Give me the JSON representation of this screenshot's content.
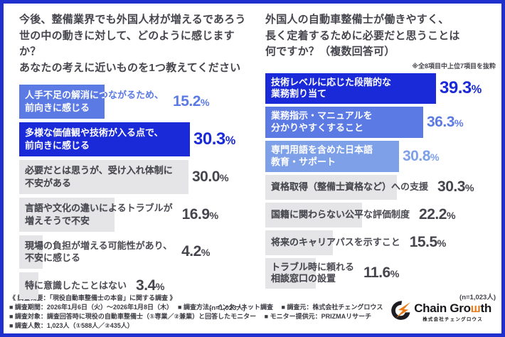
{
  "percent_sign": "%",
  "palette": {
    "frame": "#2030cf",
    "dark_blue": "#1b2ad8",
    "mid_blue": "#5c7ae3",
    "light_blue": "#7da0e8",
    "gray_bar": "#e5e5e7",
    "gray_text": "#4b4b53",
    "pct_gray": "#45454d",
    "title_text": "#45454d",
    "logo_orange": "#e87a18",
    "logo_black": "#17171b"
  },
  "charts": {
    "left": {
      "title": "今後、整備業界でも外国人材が増えるであろう\n世の中の動きに対して、どのように感じますか？\nあなたの考えに近いものを1つ教えてください",
      "n_label": "(n=1,023人)",
      "rows": [
        {
          "label": "人手不足の解消につながるため、\n前向きに感じる",
          "value": 15.2,
          "pct": "15.2",
          "style": "mid"
        },
        {
          "label": "多様な価値観や技術が入る点で、\n前向きに感じる",
          "value": 30.3,
          "pct": "30.3",
          "style": "dark"
        },
        {
          "label": "必要だとは思うが、受け入れ体制に\n不安がある",
          "value": 30.0,
          "pct": "30.0",
          "style": "gray"
        },
        {
          "label": "言語や文化の違いによるトラブルが\n増えそうで不安",
          "value": 16.9,
          "pct": "16.9",
          "style": "gray"
        },
        {
          "label": "現場の負担が増える可能性があり、\n不安に感じる",
          "value": 4.2,
          "pct": "4.2",
          "style": "gray"
        },
        {
          "label": "特に意識したことはない",
          "value": 3.4,
          "pct": "3.4",
          "style": "gray"
        }
      ]
    },
    "right": {
      "title": "外国人の自動車整備士が働きやすく、\n長く定着するために必要だと思うことは\n何ですか？（複数回答可）",
      "note": "※全8項目中上位7項目を抜粋",
      "n_label": "(n=1,023人)",
      "rows": [
        {
          "label": "技術レベルに応じた段階的な\n業務割り当て",
          "value": 39.3,
          "pct": "39.3",
          "style": "dark"
        },
        {
          "label": "業務指示・マニュアルを\n分かりやすくすること",
          "value": 36.3,
          "pct": "36.3",
          "style": "mid"
        },
        {
          "label": "専門用語を含めた日本語\n教育・サポート",
          "value": 30.8,
          "pct": "30.8",
          "style": "light"
        },
        {
          "label": "資格取得（整備士資格など）への支援",
          "value": 30.3,
          "pct": "30.3",
          "style": "gray"
        },
        {
          "label": "国籍に関わらない公平な評価制度",
          "value": 22.2,
          "pct": "22.2",
          "style": "gray"
        },
        {
          "label": "将来のキャリアパスを示すこと",
          "value": 15.5,
          "pct": "15.5",
          "style": "gray"
        },
        {
          "label": "トラブル時に頼れる\n相談窓口の設置",
          "value": 11.6,
          "pct": "11.6",
          "style": "gray"
        }
      ]
    }
  },
  "footer": {
    "lines": [
      "《 調査概要：「現役自動車整備士の本音」に関する調査 》",
      "■ 調査期間：2026年1月6日（火）～2026年1月8日（木）　 ■ 調査方法：インターネット調査　 ■ 調査元：株式会社チェングロウス",
      "■ 調査対象：調査回答時に現役の自動車整備士（①専業／②兼業）と回答したモニター　 ■ モニター提供元：PRIZMAリサーチ",
      "■ 調査人数：1,023人（①588人／②435人）"
    ],
    "logo": {
      "name_part1": "Chain Gro",
      "name_w": "ш",
      "name_part2": "th",
      "subtitle": "株式会社チェングロウス"
    }
  },
  "chart_data": [
    {
      "type": "bar",
      "orientation": "horizontal",
      "title": "今後、整備業界でも外国人材が増えるであろう世の中の動きに対して、どのように感じますか？あなたの考えに近いものを1つ教えてください",
      "categories": [
        "人手不足の解消につながるため、前向きに感じる",
        "多様な価値観や技術が入る点で、前向きに感じる",
        "必要だとは思うが、受け入れ体制に不安がある",
        "言語や文化の違いによるトラブルが増えそうで不安",
        "現場の負担が増える可能性があり、不安に感じる",
        "特に意識したことはない"
      ],
      "values": [
        15.2,
        30.3,
        30.0,
        16.9,
        4.2,
        3.4
      ],
      "unit": "%",
      "sample": "n=1,023人",
      "xlim": [
        0,
        39.3
      ],
      "legend": false,
      "grid": false
    },
    {
      "type": "bar",
      "orientation": "horizontal",
      "title": "外国人の自動車整備士が働きやすく、長く定着するために必要だと思うことは何ですか？（複数回答可）",
      "subtitle": "※全8項目中上位7項目を抜粋",
      "categories": [
        "技術レベルに応じた段階的な業務割り当て",
        "業務指示・マニュアルを分かりやすくすること",
        "専門用語を含めた日本語教育・サポート",
        "資格取得（整備士資格など）への支援",
        "国籍に関わらない公平な評価制度",
        "将来のキャリアパスを示すこと",
        "トラブル時に頼れる相談窓口の設置"
      ],
      "values": [
        39.3,
        36.3,
        30.8,
        30.3,
        22.2,
        15.5,
        11.6
      ],
      "unit": "%",
      "sample": "n=1,023人",
      "xlim": [
        0,
        39.3
      ],
      "legend": false,
      "grid": false
    }
  ]
}
